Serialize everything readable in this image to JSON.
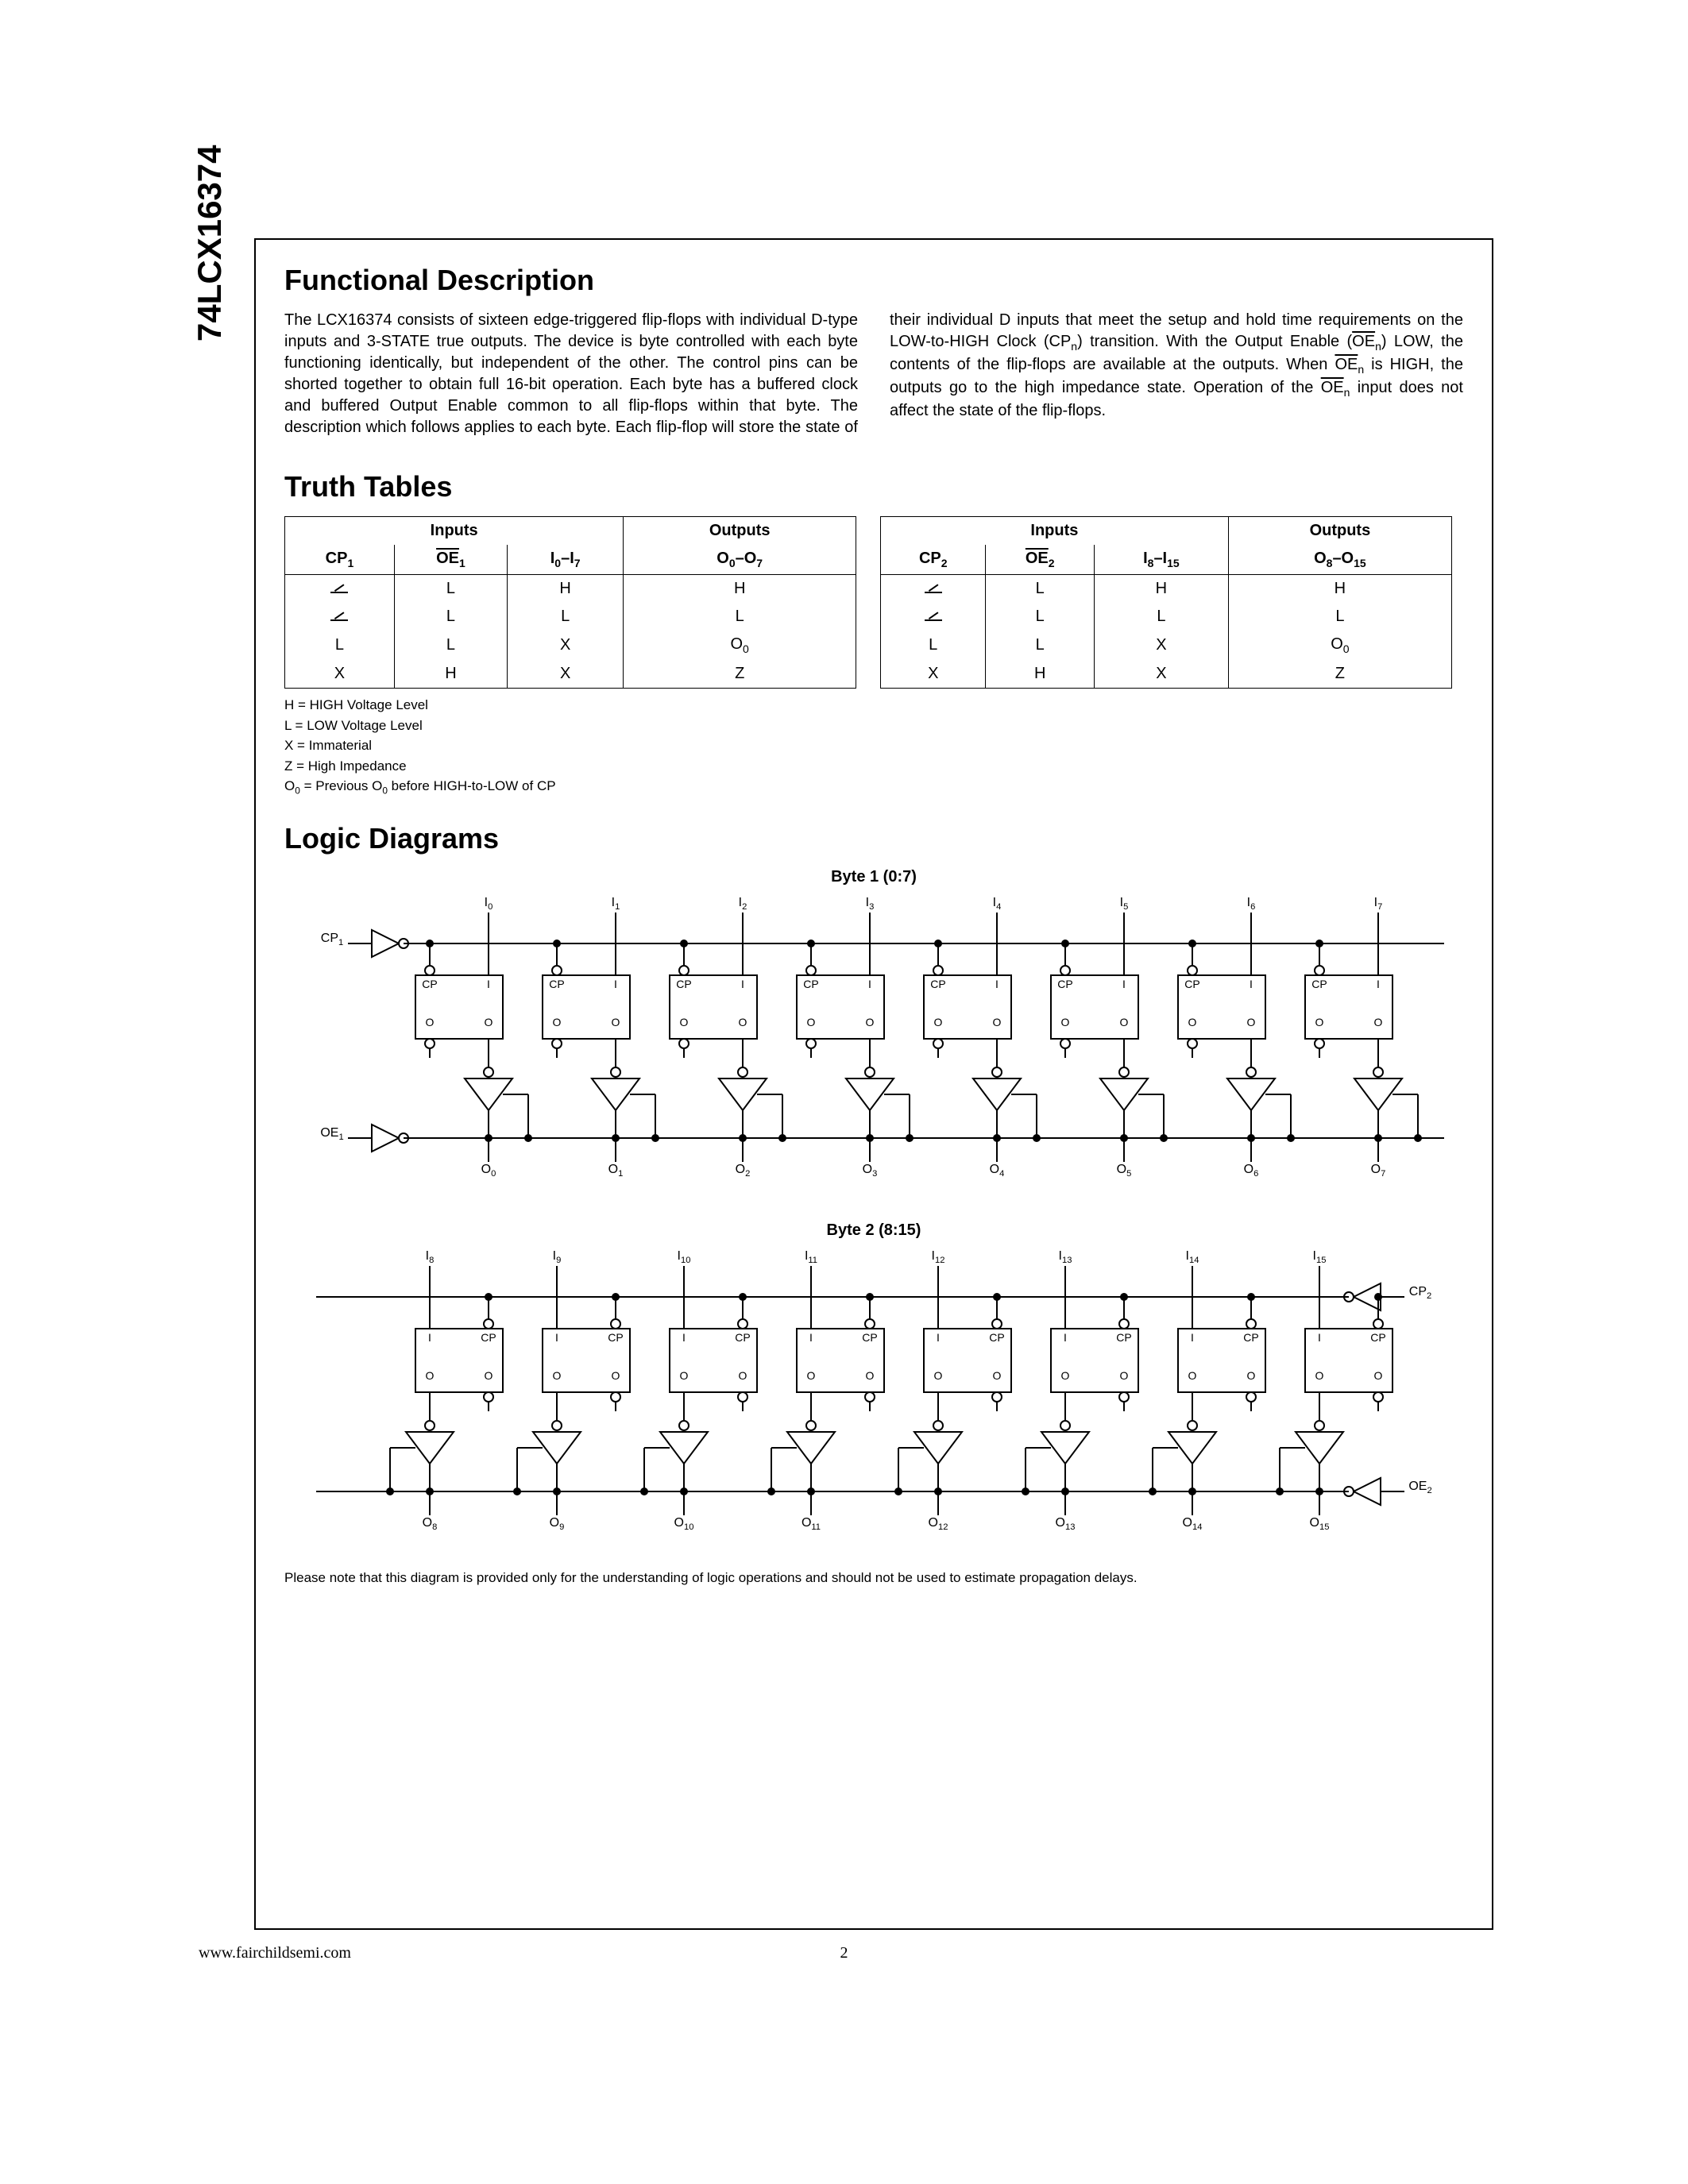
{
  "part_number": "74LCX16374",
  "sections": {
    "functional": "Functional Description",
    "truth": "Truth Tables",
    "logic": "Logic Diagrams"
  },
  "description_html": "The LCX16374 consists of sixteen edge-triggered flip-flops with individual D-type inputs and 3-STATE true outputs. The device is byte controlled with each byte functioning identically, but independent of the other. The control pins can be shorted together to obtain full 16-bit operation. Each byte has a buffered clock and buffered Output Enable common to all flip-flops within that byte. The description which follows applies to each byte. Each flip-flop will store the state of their individual D inputs that meet the setup and hold time requirements on the LOW-to-HIGH Clock (CP<sub>n</sub>) transition. With the Output Enable (<span class='ov'>OE</span><sub>n</sub>) LOW, the contents of the flip-flops are available at the outputs. When <span class='ov'>OE</span><sub>n</sub> is HIGH, the outputs go to the high impedance state. Operation of the <span class='ov'>OE</span><sub>n</sub> input does not affect the state of the flip-flops.",
  "table_headers": {
    "inputs": "Inputs",
    "outputs": "Outputs"
  },
  "table1": {
    "cols": [
      "CP<sub>1</sub>",
      "<span class='ov'>OE</span><sub>1</sub>",
      "I<sub>0</sub>–I<sub>7</sub>",
      "O<sub>0</sub>–O<sub>7</sub>"
    ],
    "rows": [
      [
        "RISE",
        "L",
        "H",
        "H"
      ],
      [
        "RISE",
        "L",
        "L",
        "L"
      ],
      [
        "L",
        "L",
        "X",
        "O<sub>0</sub>"
      ],
      [
        "X",
        "H",
        "X",
        "Z"
      ]
    ]
  },
  "table2": {
    "cols": [
      "CP<sub>2</sub>",
      "<span class='ov'>OE</span><sub>2</sub>",
      "I<sub>8</sub>–I<sub>15</sub>",
      "O<sub>8</sub>–O<sub>15</sub>"
    ],
    "rows": [
      [
        "RISE",
        "L",
        "H",
        "H"
      ],
      [
        "RISE",
        "L",
        "L",
        "L"
      ],
      [
        "L",
        "L",
        "X",
        "O<sub>0</sub>"
      ],
      [
        "X",
        "H",
        "X",
        "Z"
      ]
    ]
  },
  "legend": [
    "H = HIGH Voltage Level",
    "L = LOW Voltage Level",
    "X = Immaterial",
    "Z = High Impedance",
    "O<sub>0</sub> = Previous O<sub>0</sub> before HIGH-to-LOW of CP"
  ],
  "byte1_title": "Byte 1 (0:7)",
  "byte2_title": "Byte 2 (8:15)",
  "diagram_note": "Please note that this diagram is provided only for the understanding of logic operations and should not be used to estimate propagation delays.",
  "byte1": {
    "cp_label": "CP<sub>1</sub>",
    "oe_label": "<span class='ov'>OE</span><sub>1</sub>",
    "i_labels": [
      "I<sub>0</sub>",
      "I<sub>1</sub>",
      "I<sub>2</sub>",
      "I<sub>3</sub>",
      "I<sub>4</sub>",
      "I<sub>5</sub>",
      "I<sub>6</sub>",
      "I<sub>7</sub>"
    ],
    "o_labels": [
      "O<sub>0</sub>",
      "O<sub>1</sub>",
      "O<sub>2</sub>",
      "O<sub>3</sub>",
      "O<sub>4</sub>",
      "O<sub>5</sub>",
      "O<sub>6</sub>",
      "O<sub>7</sub>"
    ]
  },
  "byte2": {
    "cp_label": "CP<sub>2</sub>",
    "oe_label": "<span class='ov'>OE</span><sub>2</sub>",
    "i_labels": [
      "I<sub>8</sub>",
      "I<sub>9</sub>",
      "I<sub>10</sub>",
      "I<sub>11</sub>",
      "I<sub>12</sub>",
      "I<sub>13</sub>",
      "I<sub>14</sub>",
      "I<sub>15</sub>"
    ],
    "o_labels": [
      "O<sub>8</sub>",
      "O<sub>9</sub>",
      "O<sub>10</sub>",
      "O<sub>11</sub>",
      "O<sub>12</sub>",
      "O<sub>13</sub>",
      "O<sub>14</sub>",
      "O<sub>15</sub>"
    ]
  },
  "footer": {
    "url": "www.fairchildsemi.com",
    "page": "2"
  },
  "colors": {
    "stroke": "#000000",
    "bg": "#ffffff"
  }
}
